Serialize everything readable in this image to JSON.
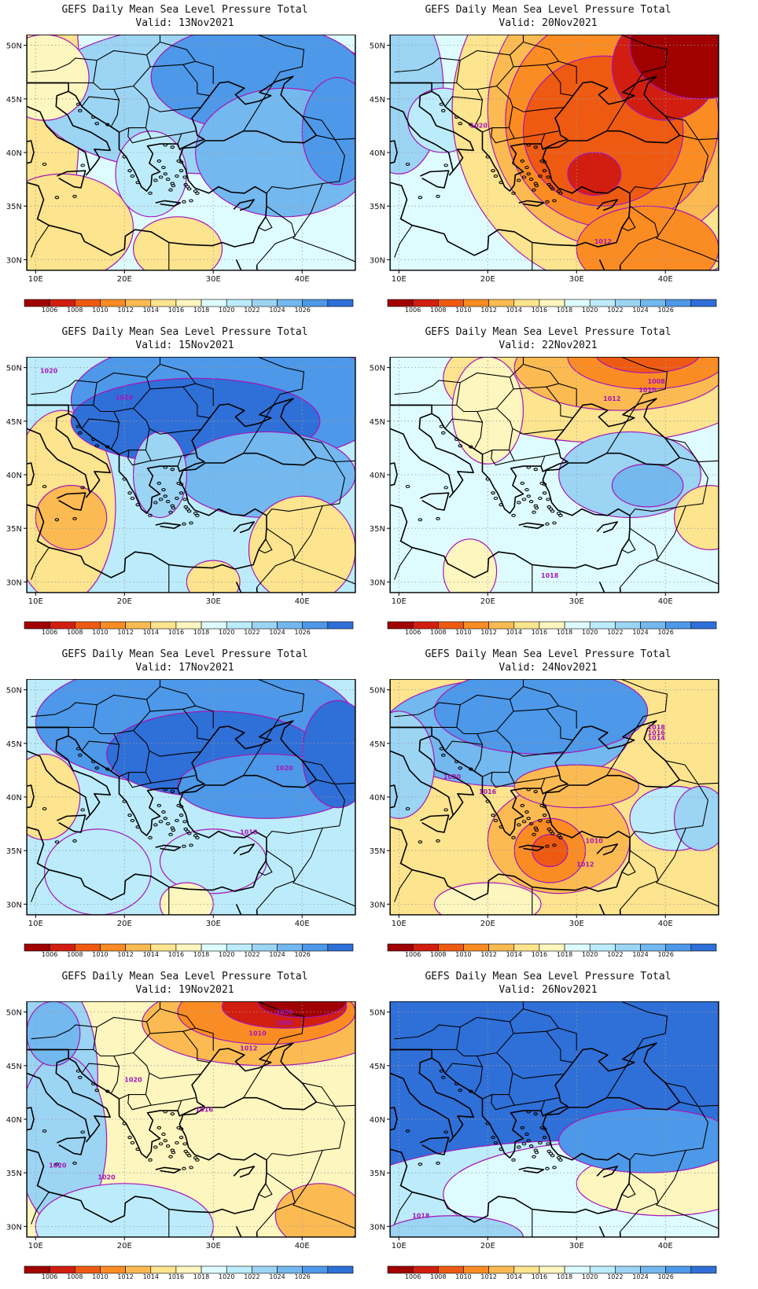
{
  "colors": {
    "scale": [
      "#a00000",
      "#d21e10",
      "#ef5a12",
      "#fb8c23",
      "#fcbb52",
      "#fde48e",
      "#fdf6bf",
      "#defcff",
      "#bcecfb",
      "#9cd4f4",
      "#73b8ef",
      "#4d98e8",
      "#2f6fd8"
    ],
    "contour": "#a516b8",
    "coast": "#000000",
    "grid": "#9a9a9a"
  },
  "colorbar": {
    "labels": [
      "1006",
      "1008",
      "1010",
      "1012",
      "1014",
      "1016",
      "1018",
      "1020",
      "1022",
      "1024",
      "1026"
    ]
  },
  "axes": {
    "lat_labels": [
      "50N",
      "45N",
      "40N",
      "35N",
      "30N"
    ],
    "lon_labels": [
      "10E",
      "20E",
      "30E",
      "40E"
    ]
  },
  "panels": [
    {
      "title": "GEFS Daily Mean Sea Level Pressure Total",
      "valid": "Valid: 13Nov2021",
      "contour_labels": []
    },
    {
      "title": "GEFS Daily Mean Sea Level Pressure Total",
      "valid": "Valid: 20Nov2021",
      "contour_labels": [
        "1020",
        "1012"
      ]
    },
    {
      "title": "GEFS Daily Mean Sea Level Pressure Total",
      "valid": "Valid: 15Nov2021",
      "contour_labels": [
        "1020",
        "1024"
      ]
    },
    {
      "title": "GEFS Daily Mean Sea Level Pressure Total",
      "valid": "Valid: 22Nov2021",
      "contour_labels": [
        "1008",
        "1010",
        "1012",
        "1018"
      ]
    },
    {
      "title": "GEFS Daily Mean Sea Level Pressure Total",
      "valid": "Valid: 17Nov2021",
      "contour_labels": [
        "1020",
        "1018"
      ]
    },
    {
      "title": "GEFS Daily Mean Sea Level Pressure Total",
      "valid": "Valid: 24Nov2021",
      "contour_labels": [
        "1018",
        "1016",
        "1014",
        "1020",
        "1016",
        "1010",
        "1012"
      ]
    },
    {
      "title": "GEFS Daily Mean Sea Level Pressure Total",
      "valid": "Valid: 19Nov2021",
      "contour_labels": [
        "1006",
        "1008",
        "1010",
        "1012",
        "1016",
        "1020",
        "1020",
        "1020"
      ]
    },
    {
      "title": "GEFS Daily Mean Sea Level Pressure Total",
      "valid": "Valid: 26Nov2021",
      "contour_labels": [
        "1018"
      ]
    }
  ]
}
